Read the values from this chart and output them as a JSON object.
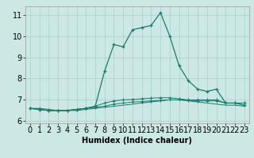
{
  "title": "",
  "xlabel": "Humidex (Indice chaleur)",
  "background_color": "#cce8e4",
  "grid_color": "#aacfcb",
  "line_color": "#1a7a6e",
  "xlim": [
    -0.5,
    23.5
  ],
  "ylim": [
    5.9,
    11.4
  ],
  "yticks": [
    6,
    7,
    8,
    9,
    10,
    11
  ],
  "xticks": [
    0,
    1,
    2,
    3,
    4,
    5,
    6,
    7,
    8,
    9,
    10,
    11,
    12,
    13,
    14,
    15,
    16,
    17,
    18,
    19,
    20,
    21,
    22,
    23
  ],
  "series": [
    [
      6.6,
      6.55,
      6.5,
      6.5,
      6.5,
      6.5,
      6.55,
      6.6,
      6.65,
      6.7,
      6.75,
      6.8,
      6.85,
      6.9,
      6.95,
      7.0,
      7.0,
      6.95,
      6.9,
      6.85,
      6.8,
      6.75,
      6.75,
      6.7
    ],
    [
      6.6,
      6.6,
      6.55,
      6.5,
      6.5,
      6.55,
      6.6,
      6.65,
      6.7,
      6.8,
      6.85,
      6.9,
      6.92,
      6.95,
      6.98,
      7.0,
      7.0,
      6.98,
      6.95,
      6.95,
      6.95,
      6.85,
      6.85,
      6.85
    ],
    [
      6.6,
      6.55,
      6.5,
      6.5,
      6.5,
      6.55,
      6.6,
      6.7,
      6.85,
      6.95,
      7.0,
      7.02,
      7.05,
      7.08,
      7.1,
      7.1,
      7.05,
      7.0,
      7.0,
      7.0,
      7.0,
      6.85,
      6.85,
      6.85
    ],
    [
      6.6,
      6.55,
      6.5,
      6.5,
      6.5,
      6.55,
      6.6,
      6.7,
      8.35,
      9.6,
      9.5,
      10.3,
      10.4,
      10.5,
      11.1,
      10.0,
      8.6,
      7.9,
      7.5,
      7.4,
      7.5,
      6.85,
      6.85,
      6.75
    ]
  ],
  "font_size_xlabel": 7,
  "font_size_tick": 7,
  "lw_main": 0.9,
  "lw_other": 0.7,
  "marker_size": 3.5,
  "marker_lw": 0.9
}
